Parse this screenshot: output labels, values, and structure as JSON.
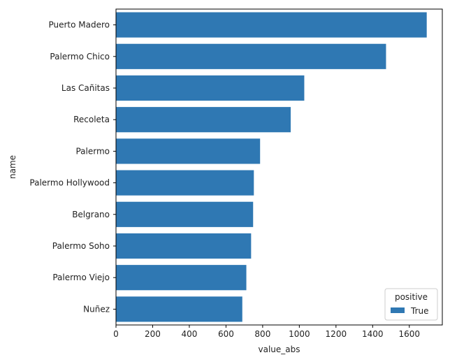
{
  "chart_data": {
    "type": "bar",
    "orientation": "horizontal",
    "categories": [
      "Puerto Madero",
      "Palermo Chico",
      "Las Cañitas",
      "Recoleta",
      "Palermo",
      "Palermo Hollywood",
      "Belgrano",
      "Palermo Soho",
      "Palermo Viejo",
      "Nuñez"
    ],
    "series": [
      {
        "name": "True",
        "values": [
          1695,
          1473,
          1027,
          953,
          786,
          752,
          748,
          737,
          711,
          689
        ],
        "color": "#2f78b3"
      }
    ],
    "xlabel": "value_abs",
    "ylabel": "name",
    "xlim": [
      0,
      1780
    ],
    "xticks": [
      0,
      200,
      400,
      600,
      800,
      1000,
      1200,
      1400,
      1600
    ],
    "grid": false,
    "legend": {
      "title": "positive",
      "placement": "bottom-right",
      "entries": [
        "True"
      ]
    }
  }
}
